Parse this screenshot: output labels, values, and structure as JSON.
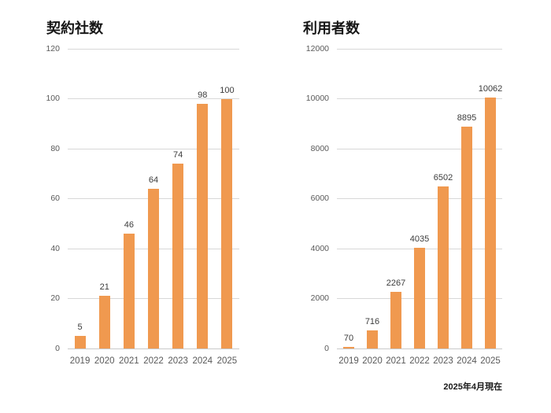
{
  "page": {
    "background": "#ffffff",
    "accent_color": "#f0994f"
  },
  "footer": {
    "as_of_label": "2025年4月現在"
  },
  "chart_data": [
    {
      "type": "bar",
      "title": "契約社数",
      "categories": [
        "2019",
        "2020",
        "2021",
        "2022",
        "2023",
        "2024",
        "2025"
      ],
      "values": [
        5,
        21,
        46,
        64,
        74,
        98,
        100
      ],
      "xlabel": "",
      "ylabel": "",
      "ylim": [
        0,
        120
      ],
      "yticks": [
        0,
        20,
        40,
        60,
        80,
        100,
        120
      ],
      "grid": true,
      "legend": "none",
      "bar_color": "#f0994f",
      "gridline_color": "#d8d8d8",
      "tick_label_color": "#595959",
      "data_label_color": "#3c3c3c"
    },
    {
      "type": "bar",
      "title": "利用者数",
      "categories": [
        "2019",
        "2020",
        "2021",
        "2022",
        "2023",
        "2024",
        "2025"
      ],
      "values": [
        70,
        716,
        2267,
        4035,
        6502,
        8895,
        10062
      ],
      "xlabel": "",
      "ylabel": "",
      "ylim": [
        0,
        12000
      ],
      "yticks": [
        0,
        2000,
        4000,
        6000,
        8000,
        10000,
        12000
      ],
      "grid": true,
      "legend": "none",
      "bar_color": "#f0994f",
      "gridline_color": "#d8d8d8",
      "tick_label_color": "#595959",
      "data_label_color": "#3c3c3c"
    }
  ]
}
